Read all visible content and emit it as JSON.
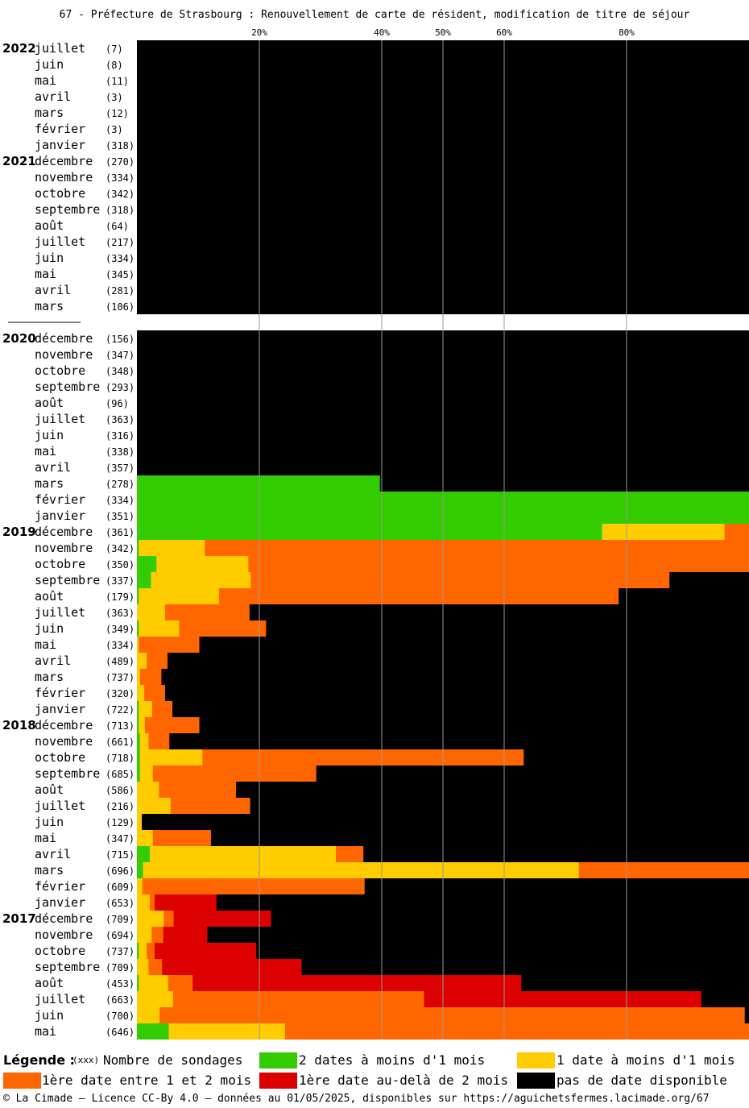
{
  "title": "67 - Préfecture de Strasbourg : Renouvellement de carte de résident, modification de titre de séjour",
  "colors": {
    "green": "#33cc00",
    "yellow": "#ffcc00",
    "orange": "#ff6600",
    "red": "#dd0000",
    "black": "#000000"
  },
  "chart_data": {
    "type": "bar",
    "orientation": "horizontal-stacked-100",
    "x_ticks": [
      "20%",
      "40%",
      "50%",
      "60%",
      "80%"
    ],
    "series_order": [
      "green",
      "yellow",
      "orange",
      "red",
      "black"
    ],
    "groups": [
      {
        "year": "2022",
        "rows": [
          {
            "month": "juillet",
            "count": "(7)",
            "values": [
              0,
              0,
              0,
              0,
              100
            ]
          },
          {
            "month": "juin",
            "count": "(8)",
            "values": [
              0,
              0,
              0,
              0,
              100
            ]
          },
          {
            "month": "mai",
            "count": "(11)",
            "values": [
              0,
              0,
              0,
              0,
              100
            ]
          },
          {
            "month": "avril",
            "count": "(3)",
            "values": [
              0,
              0,
              0,
              0,
              100
            ]
          },
          {
            "month": "mars",
            "count": "(12)",
            "values": [
              0,
              0,
              0,
              0,
              100
            ]
          },
          {
            "month": "février",
            "count": "(3)",
            "values": [
              0,
              0,
              0,
              0,
              100
            ]
          },
          {
            "month": "janvier",
            "count": "(318)",
            "values": [
              0,
              0,
              0,
              0,
              100
            ]
          }
        ]
      },
      {
        "year": "2021",
        "rows": [
          {
            "month": "décembre",
            "count": "(270)",
            "values": [
              0,
              0,
              0,
              0,
              100
            ]
          },
          {
            "month": "novembre",
            "count": "(334)",
            "values": [
              0,
              0,
              0,
              0,
              100
            ]
          },
          {
            "month": "octobre",
            "count": "(342)",
            "values": [
              0,
              0,
              0,
              0,
              100
            ]
          },
          {
            "month": "septembre",
            "count": "(318)",
            "values": [
              0,
              0,
              0,
              0,
              100
            ]
          },
          {
            "month": "août",
            "count": "(64)",
            "values": [
              0,
              0,
              0,
              0,
              100
            ]
          },
          {
            "month": "juillet",
            "count": "(217)",
            "values": [
              0,
              0,
              0,
              0,
              100
            ]
          },
          {
            "month": "juin",
            "count": "(334)",
            "values": [
              0,
              0,
              0,
              0,
              100
            ]
          },
          {
            "month": "mai",
            "count": "(345)",
            "values": [
              0,
              0,
              0,
              0,
              100
            ]
          },
          {
            "month": "avril",
            "count": "(281)",
            "values": [
              0,
              0,
              0,
              0,
              100
            ]
          },
          {
            "month": "mars",
            "count": "(106)",
            "values": [
              0,
              0,
              0,
              0,
              100
            ]
          }
        ]
      },
      {
        "year": "2020",
        "gap_before": true,
        "rows": [
          {
            "month": "décembre",
            "count": "(156)",
            "values": [
              0,
              0,
              0,
              0,
              100
            ]
          },
          {
            "month": "novembre",
            "count": "(347)",
            "values": [
              0,
              0,
              0,
              0,
              100
            ]
          },
          {
            "month": "octobre",
            "count": "(348)",
            "values": [
              0,
              0,
              0,
              0,
              100
            ]
          },
          {
            "month": "septembre",
            "count": "(293)",
            "values": [
              0,
              0,
              0,
              0,
              100
            ]
          },
          {
            "month": "août",
            "count": "(96)",
            "values": [
              0,
              0,
              0,
              0,
              100
            ]
          },
          {
            "month": "juillet",
            "count": "(363)",
            "values": [
              0,
              0,
              0,
              0,
              100
            ]
          },
          {
            "month": "juin",
            "count": "(316)",
            "values": [
              0,
              0,
              0,
              0,
              100
            ]
          },
          {
            "month": "mai",
            "count": "(338)",
            "values": [
              0,
              0,
              0,
              0,
              100
            ]
          },
          {
            "month": "avril",
            "count": "(357)",
            "values": [
              0,
              0,
              0,
              0,
              100
            ]
          },
          {
            "month": "mars",
            "count": "(278)",
            "values": [
              39.7,
              0,
              0,
              0,
              60.3
            ]
          },
          {
            "month": "février",
            "count": "(334)",
            "values": [
              100,
              0,
              0,
              0,
              0
            ]
          },
          {
            "month": "janvier",
            "count": "(351)",
            "values": [
              100,
              0,
              0,
              0,
              0
            ]
          }
        ]
      },
      {
        "year": "2019",
        "rows": [
          {
            "month": "décembre",
            "count": "(361)",
            "values": [
              76,
              20,
              4,
              0,
              0
            ]
          },
          {
            "month": "novembre",
            "count": "(342)",
            "values": [
              0.3,
              10.8,
              88.9,
              0,
              0
            ]
          },
          {
            "month": "octobre",
            "count": "(350)",
            "values": [
              3.2,
              15,
              81.8,
              0,
              0
            ]
          },
          {
            "month": "septembre",
            "count": "(337)",
            "values": [
              2.3,
              16.3,
              68.4,
              0,
              13
            ]
          },
          {
            "month": "août",
            "count": "(179)",
            "values": [
              0.3,
              13.1,
              65.3,
              0,
              21.3
            ]
          },
          {
            "month": "juillet",
            "count": "(363)",
            "values": [
              0,
              4.6,
              13.8,
              0,
              81.6
            ]
          },
          {
            "month": "juin",
            "count": "(349)",
            "values": [
              0.3,
              6.6,
              14.2,
              0,
              78.9
            ]
          },
          {
            "month": "mai",
            "count": "(334)",
            "values": [
              0,
              0.3,
              9.9,
              0,
              89.8
            ]
          },
          {
            "month": "avril",
            "count": "(489)",
            "values": [
              0,
              1.6,
              3.4,
              0,
              95
            ]
          },
          {
            "month": "mars",
            "count": "(737)",
            "values": [
              0,
              0.5,
              3.5,
              0,
              96
            ]
          },
          {
            "month": "février",
            "count": "(320)",
            "values": [
              0,
              1.2,
              3.4,
              0,
              95.4
            ]
          },
          {
            "month": "janvier",
            "count": "(722)",
            "values": [
              0.3,
              2.2,
              3.3,
              0,
              94.2
            ]
          }
        ]
      },
      {
        "year": "2018",
        "rows": [
          {
            "month": "décembre",
            "count": "(713)",
            "values": [
              0.3,
              1,
              8.9,
              0,
              89.8
            ]
          },
          {
            "month": "novembre",
            "count": "(661)",
            "values": [
              0.5,
              1.4,
              3.4,
              0,
              94.7
            ]
          },
          {
            "month": "octobre",
            "count": "(718)",
            "values": [
              0.5,
              10.2,
              52.5,
              0,
              36.8
            ]
          },
          {
            "month": "septembre",
            "count": "(685)",
            "values": [
              0.5,
              2.1,
              26.7,
              0,
              70.7
            ]
          },
          {
            "month": "août",
            "count": "(586)",
            "values": [
              0,
              3.6,
              12.6,
              0,
              83.8
            ]
          },
          {
            "month": "juillet",
            "count": "(216)",
            "values": [
              0,
              5.5,
              13,
              0,
              81.5
            ]
          },
          {
            "month": "juin",
            "count": "(129)",
            "values": [
              0,
              0.8,
              0,
              0,
              99.2
            ]
          },
          {
            "month": "mai",
            "count": "(347)",
            "values": [
              0,
              2.6,
              9.5,
              0,
              87.9
            ]
          },
          {
            "month": "avril",
            "count": "(715)",
            "values": [
              2.1,
              30.4,
              4.5,
              0,
              63
            ]
          },
          {
            "month": "mars",
            "count": "(696)",
            "values": [
              1,
              71.2,
              27.8,
              0,
              0
            ]
          },
          {
            "month": "février",
            "count": "(609)",
            "values": [
              0,
              0.9,
              36.3,
              0,
              62.8
            ]
          },
          {
            "month": "janvier",
            "count": "(653)",
            "values": [
              0,
              2.1,
              0.8,
              10.1,
              87
            ]
          }
        ]
      },
      {
        "year": "2017",
        "rows": [
          {
            "month": "décembre",
            "count": "(709)",
            "values": [
              0,
              4.4,
              1.6,
              15.9,
              78.1
            ]
          },
          {
            "month": "novembre",
            "count": "(694)",
            "values": [
              0,
              2.4,
              1.9,
              7.2,
              88.5
            ]
          },
          {
            "month": "octobre",
            "count": "(737)",
            "values": [
              0.3,
              1.3,
              1.3,
              16.6,
              80.5
            ]
          },
          {
            "month": "septembre",
            "count": "(709)",
            "values": [
              0,
              1.9,
              2.2,
              22.8,
              73.1
            ]
          },
          {
            "month": "août",
            "count": "(453)",
            "values": [
              0.3,
              4.8,
              4,
              53.7,
              37.2
            ]
          },
          {
            "month": "juillet",
            "count": "(663)",
            "values": [
              0,
              5.9,
              41,
              45.3,
              7.8
            ]
          },
          {
            "month": "juin",
            "count": "(700)",
            "values": [
              0,
              3.7,
              95.6,
              0,
              0.7
            ]
          },
          {
            "month": "mai",
            "count": "(646)",
            "values": [
              5.2,
              19,
              75.8,
              0,
              0
            ]
          }
        ]
      }
    ]
  },
  "legend": {
    "title": "Légende :",
    "count_key": "(xxx)",
    "count_label": "Nombre de sondages",
    "items": [
      {
        "key": "green",
        "label": "2 dates à moins d'1 mois"
      },
      {
        "key": "yellow",
        "label": "1 date à moins d'1 mois"
      },
      {
        "key": "orange",
        "label": "1ère date entre 1 et 2 mois"
      },
      {
        "key": "red",
        "label": "1ère date au-delà de 2 mois"
      },
      {
        "key": "black",
        "label": "pas de date disponible"
      }
    ]
  },
  "footer": "© La Cimade — Licence CC-By 4.0 — données au 01/05/2025, disponibles sur https://aguichetsfermes.lacimade.org/67"
}
